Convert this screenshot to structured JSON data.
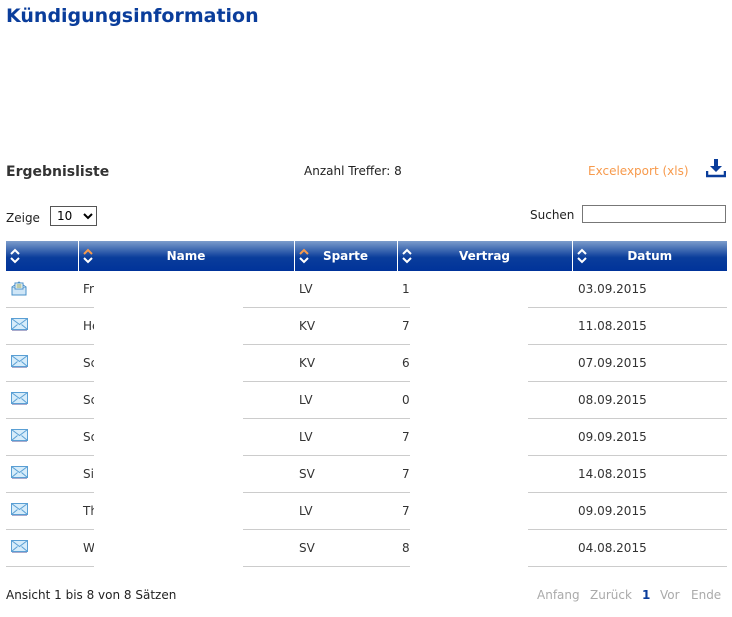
{
  "title": "Kündigungsinformation",
  "results_title": "Ergebnisliste",
  "hits": "Anzahl Treffer: 8",
  "export_label": "Excelexport (xls)",
  "show_label": "Zeige",
  "page_size": "10",
  "search_label": "Suchen",
  "search_value": "",
  "columns": [
    "",
    "Name",
    "Sparte",
    "Vertrag",
    "Datum"
  ],
  "rows": [
    {
      "icon": "open-envelope-icon",
      "name": "Fr",
      "sparte": "LV",
      "vertrag": "1",
      "datum": "03.09.2015"
    },
    {
      "icon": "envelope-icon",
      "name": "He",
      "sparte": "KV",
      "vertrag": "7",
      "datum": "11.08.2015"
    },
    {
      "icon": "envelope-icon",
      "name": "Sc",
      "sparte": "KV",
      "vertrag": "6",
      "datum": "07.09.2015"
    },
    {
      "icon": "envelope-icon",
      "name": "Sc",
      "sparte": "LV",
      "vertrag": "0",
      "datum": "08.09.2015"
    },
    {
      "icon": "envelope-icon",
      "name": "Sc",
      "sparte": "LV",
      "vertrag": "7",
      "datum": "09.09.2015"
    },
    {
      "icon": "envelope-icon",
      "name": "Si",
      "sparte": "SV",
      "vertrag": "7",
      "datum": "14.08.2015"
    },
    {
      "icon": "envelope-icon",
      "name": "Th",
      "sparte": "LV",
      "vertrag": "7",
      "datum": "09.09.2015"
    },
    {
      "icon": "envelope-icon",
      "name": "W",
      "sparte": "SV",
      "vertrag": "8",
      "datum": "04.08.2015"
    }
  ],
  "footer": "Ansicht 1 bis 8 von 8 Sätzen",
  "pager": {
    "first": "Anfang",
    "prev": "Zurück",
    "current": "1",
    "next": "Vor",
    "last": "Ende"
  },
  "colors": {
    "brand": "#0a3d9b",
    "accent": "#f79a4c"
  }
}
